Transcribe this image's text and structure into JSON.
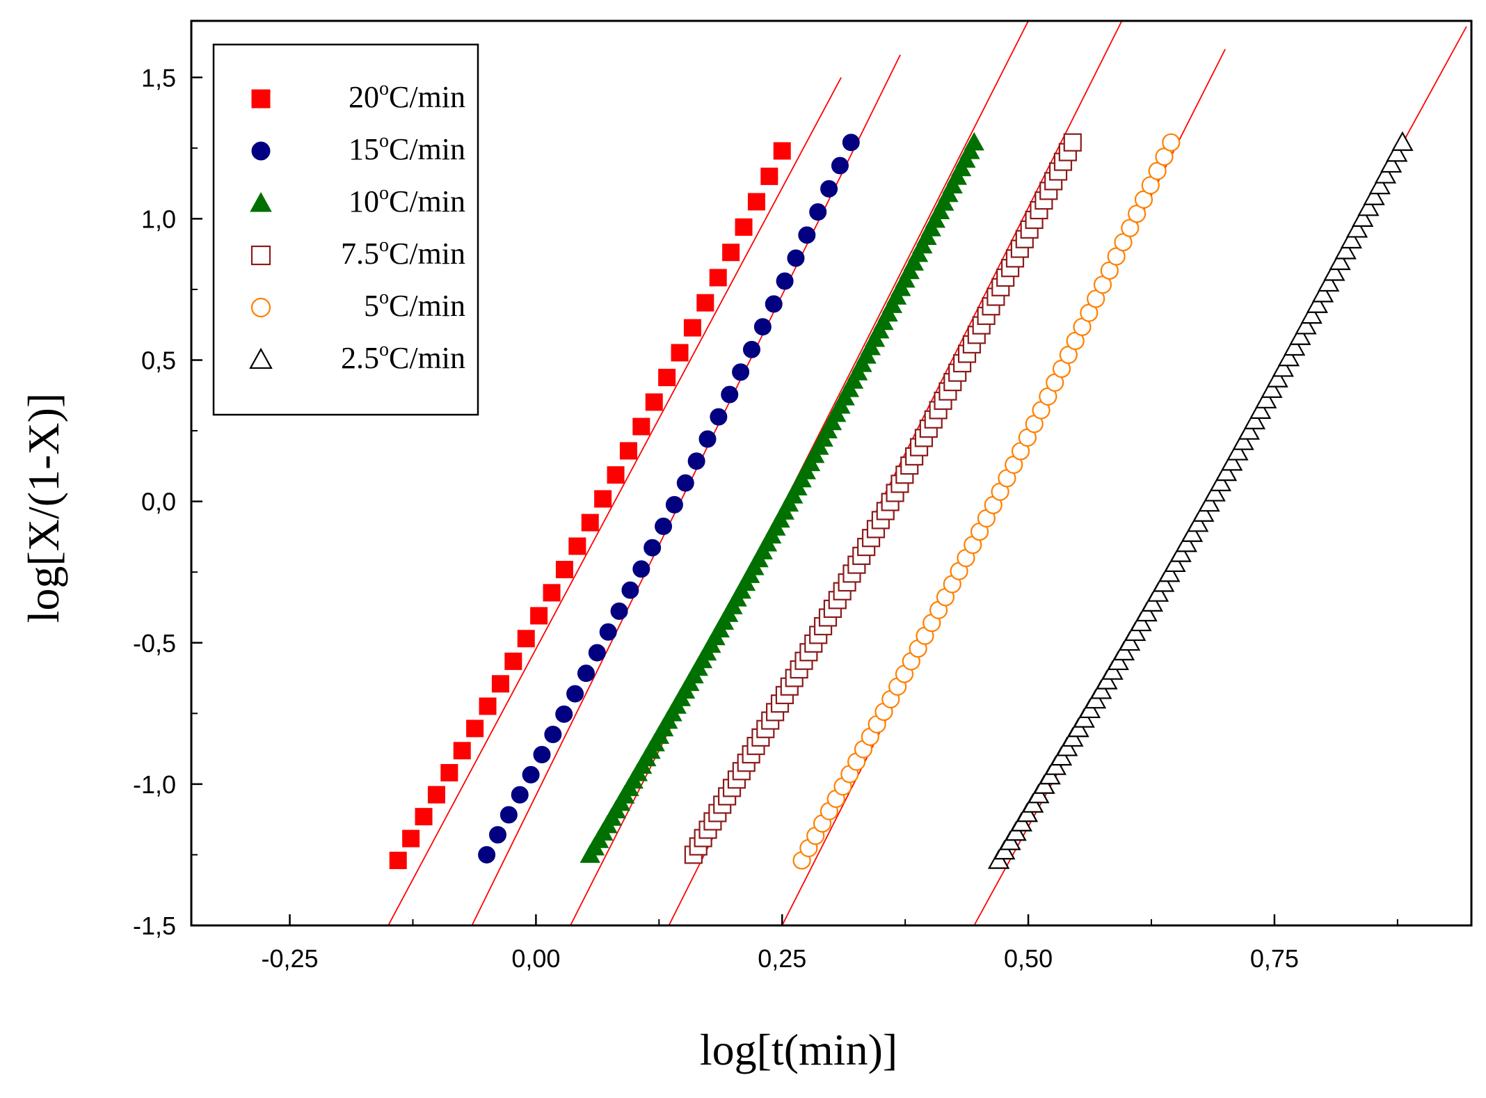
{
  "chart_data": {
    "type": "scatter",
    "title": "",
    "xlabel": "log[t(min)]",
    "ylabel": "log[X/(1-X)]",
    "xlim": [
      -0.35,
      0.95
    ],
    "ylim": [
      -1.5,
      1.7
    ],
    "x_ticks": [
      -0.25,
      0.0,
      0.25,
      0.5,
      0.75
    ],
    "x_tick_labels": [
      "-0,25",
      "0,00",
      "0,25",
      "0,50",
      "0,75"
    ],
    "y_ticks": [
      -1.5,
      -1.0,
      -0.5,
      0.0,
      0.5,
      1.0,
      1.5
    ],
    "y_tick_labels": [
      "-1,5",
      "-1,0",
      "-0,5",
      "0,0",
      "0,5",
      "1,0",
      "1,5"
    ],
    "legend_position": "top-left",
    "fit_line_color": "#ff0000",
    "series": [
      {
        "name": "20°C/min",
        "label_num": "20",
        "label_unit": "C/min",
        "marker": "square",
        "filled": true,
        "color": "#ff0000",
        "x_start": -0.14,
        "x_end": 0.25,
        "y_start": -1.27,
        "y_end": 1.24,
        "n_points": 31,
        "fit": {
          "x1": -0.15,
          "y1": -1.5,
          "x2": 0.31,
          "y2": 1.5
        }
      },
      {
        "name": "15°C/min",
        "label_num": "15",
        "label_unit": "C/min",
        "marker": "circle",
        "filled": true,
        "color": "#000080",
        "x_start": -0.05,
        "x_end": 0.32,
        "y_start": -1.25,
        "y_end": 1.27,
        "n_points": 34,
        "fit": {
          "x1": -0.065,
          "y1": -1.5,
          "x2": 0.37,
          "y2": 1.58
        }
      },
      {
        "name": "10°C/min",
        "label_num": "10",
        "label_unit": "C/min",
        "marker": "triangle",
        "filled": true,
        "color": "#007000",
        "x_start": 0.055,
        "x_end": 0.445,
        "y_start": -1.25,
        "y_end": 1.27,
        "n_points": 90,
        "fit": {
          "x1": 0.035,
          "y1": -1.5,
          "x2": 0.5,
          "y2": 1.7
        }
      },
      {
        "name": "7.5°C/min",
        "label_num": "7.5",
        "label_unit": "C/min",
        "marker": "square",
        "filled": false,
        "color": "#8b1a1a",
        "x_start": 0.16,
        "x_end": 0.545,
        "y_start": -1.25,
        "y_end": 1.27,
        "n_points": 80,
        "fit": {
          "x1": 0.135,
          "y1": -1.5,
          "x2": 0.595,
          "y2": 1.7
        }
      },
      {
        "name": "5°C/min",
        "label_num": "5",
        "label_unit": "C/min",
        "marker": "circle",
        "filled": false,
        "color": "#ff8000",
        "x_start": 0.27,
        "x_end": 0.645,
        "y_start": -1.27,
        "y_end": 1.27,
        "n_points": 55,
        "fit": {
          "x1": 0.25,
          "y1": -1.5,
          "x2": 0.7,
          "y2": 1.6
        }
      },
      {
        "name": "2.5°C/min",
        "label_num": "2.5",
        "label_unit": "C/min",
        "marker": "triangle",
        "filled": false,
        "color": "#000000",
        "x_start": 0.47,
        "x_end": 0.88,
        "y_start": -1.27,
        "y_end": 1.27,
        "n_points": 72,
        "fit": {
          "x1": 0.445,
          "y1": -1.5,
          "x2": 0.945,
          "y2": 1.68
        }
      }
    ]
  }
}
